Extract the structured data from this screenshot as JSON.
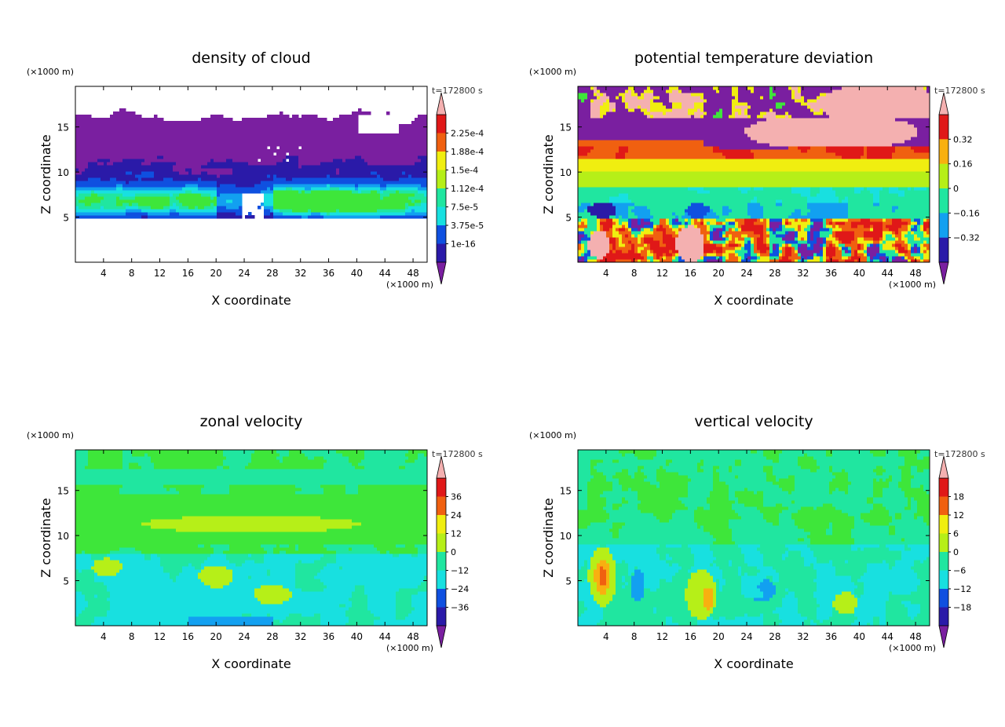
{
  "chart_data": [
    {
      "type": "heatmap",
      "title": "density of cloud",
      "xlabel": "X coordinate",
      "ylabel": "Z coordinate",
      "x_unit": "(×1000 m)",
      "y_unit": "(×1000 m)",
      "time_label": "t=172800 s",
      "x_ticks": [
        4,
        8,
        12,
        16,
        20,
        24,
        28,
        32,
        36,
        40,
        44,
        48
      ],
      "y_ticks": [
        5,
        10,
        15
      ],
      "xlim": [
        0,
        50
      ],
      "ylim": [
        0,
        19.5
      ],
      "colorbar_labels": [
        "2.25e-4",
        "1.88e-4",
        "1.5e-4",
        "1.12e-4",
        "7.5e-5",
        "3.75e-5",
        "1e-16"
      ],
      "field": "cloud"
    },
    {
      "type": "heatmap",
      "title": "potential temperature deviation",
      "xlabel": "X coordinate",
      "ylabel": "Z coordinate",
      "x_unit": "(×1000 m)",
      "y_unit": "(×1000 m)",
      "time_label": "t=172800 s",
      "x_ticks": [
        4,
        8,
        12,
        16,
        20,
        24,
        28,
        32,
        36,
        40,
        44,
        48
      ],
      "y_ticks": [
        5,
        10,
        15
      ],
      "xlim": [
        0,
        50
      ],
      "ylim": [
        0,
        19.5
      ],
      "colorbar_labels": [
        "0.32",
        "0.16",
        "0",
        "−0.16",
        "−0.32"
      ],
      "field": "theta"
    },
    {
      "type": "heatmap",
      "title": "zonal velocity",
      "xlabel": "X coordinate",
      "ylabel": "Z coordinate",
      "x_unit": "(×1000 m)",
      "y_unit": "(×1000 m)",
      "time_label": "t=172800 s",
      "x_ticks": [
        4,
        8,
        12,
        16,
        20,
        24,
        28,
        32,
        36,
        40,
        44,
        48
      ],
      "y_ticks": [
        5,
        10,
        15
      ],
      "xlim": [
        0,
        50
      ],
      "ylim": [
        0,
        19.5
      ],
      "colorbar_labels": [
        "36",
        "24",
        "12",
        "0",
        "−12",
        "−24",
        "−36"
      ],
      "field": "u"
    },
    {
      "type": "heatmap",
      "title": "vertical velocity",
      "xlabel": "X coordinate",
      "ylabel": "Z coordinate",
      "x_unit": "(×1000 m)",
      "y_unit": "(×1000 m)",
      "time_label": "t=172800 s",
      "x_ticks": [
        4,
        8,
        12,
        16,
        20,
        24,
        28,
        32,
        36,
        40,
        44,
        48
      ],
      "y_ticks": [
        5,
        10,
        15
      ],
      "xlim": [
        0,
        50
      ],
      "ylim": [
        0,
        19.5
      ],
      "colorbar_labels": [
        "18",
        "12",
        "6",
        "0",
        "−6",
        "−12",
        "−18"
      ],
      "field": "w"
    }
  ],
  "colors": {
    "colormap": [
      "#7a1fa0",
      "#2a1aa8",
      "#0f50e0",
      "#12a0f0",
      "#18e0e0",
      "#20e6a0",
      "#3ee63a",
      "#b6ef18",
      "#f0ee10",
      "#f8b010",
      "#f06010",
      "#e01818",
      "#f4b0b0"
    ]
  }
}
